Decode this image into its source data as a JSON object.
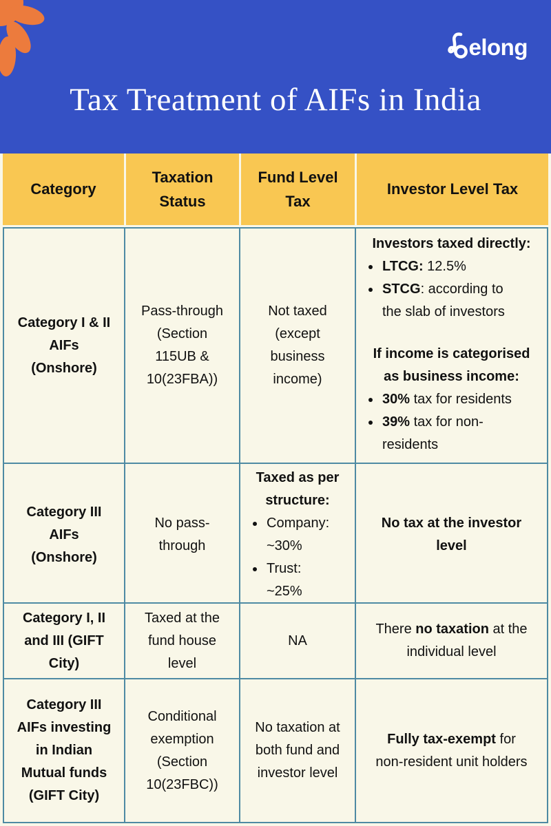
{
  "brand": {
    "name": "belong",
    "wordmark_rest": "elong"
  },
  "header": {
    "title": "Tax Treatment of AIFs in India"
  },
  "colors": {
    "hero_blue": "#3551C5",
    "accent_orange": "#EC7B3D",
    "header_yellow": "#F9C752",
    "page_cream": "#F9F7E8",
    "table_border_teal": "#4E8AA3",
    "text_dark": "#111111",
    "logo_white": "#FFFFFF"
  },
  "table": {
    "headers": [
      "Category",
      "Taxation\nStatus",
      "Fund Level\nTax",
      "Investor Level Tax"
    ],
    "rows": [
      {
        "cells": [
          {
            "blocks": [
              {
                "type": "p",
                "runs": [
                  {
                    "t": "Category I & II\nAIFs\n(Onshore)",
                    "b": true
                  }
                ]
              }
            ]
          },
          {
            "blocks": [
              {
                "type": "p",
                "runs": [
                  {
                    "t": "Pass-through\n(Section\n115UB &\n10(23FBA))"
                  }
                ]
              }
            ]
          },
          {
            "blocks": [
              {
                "type": "p",
                "runs": [
                  {
                    "t": "Not taxed\n(except\nbusiness\nincome)"
                  }
                ]
              }
            ]
          },
          {
            "align": "top",
            "blocks": [
              {
                "type": "p",
                "runs": [
                  {
                    "t": "Investors taxed directly:",
                    "b": true
                  }
                ]
              },
              {
                "type": "ul",
                "items": [
                  [
                    {
                      "t": "LTCG:",
                      "b": true
                    },
                    {
                      "t": " 12.5%"
                    }
                  ],
                  [
                    {
                      "t": "STCG",
                      "b": true
                    },
                    {
                      "t": ": according to\nthe slab of investors"
                    }
                  ]
                ]
              },
              {
                "type": "gap"
              },
              {
                "type": "p",
                "runs": [
                  {
                    "t": "If income is categorised\nas business income:",
                    "b": true
                  }
                ]
              },
              {
                "type": "ul",
                "items": [
                  [
                    {
                      "t": "30%",
                      "b": true
                    },
                    {
                      "t": " tax for residents"
                    }
                  ],
                  [
                    {
                      "t": "39%",
                      "b": true
                    },
                    {
                      "t": " tax for non-\nresidents"
                    }
                  ]
                ]
              }
            ]
          }
        ]
      },
      {
        "cells": [
          {
            "blocks": [
              {
                "type": "p",
                "runs": [
                  {
                    "t": "Category III\nAIFs\n(Onshore)",
                    "b": true
                  }
                ]
              }
            ]
          },
          {
            "blocks": [
              {
                "type": "p",
                "runs": [
                  {
                    "t": "No pass-\nthrough"
                  }
                ]
              }
            ]
          },
          {
            "blocks": [
              {
                "type": "p",
                "runs": [
                  {
                    "t": "Taxed as per\nstructure:",
                    "b": true
                  }
                ]
              },
              {
                "type": "ul",
                "items": [
                  [
                    {
                      "t": "Company:\n~30%"
                    }
                  ],
                  [
                    {
                      "t": "Trust:\n~25%"
                    }
                  ]
                ]
              }
            ]
          },
          {
            "blocks": [
              {
                "type": "p",
                "runs": [
                  {
                    "t": "No tax at the investor\nlevel",
                    "b": true
                  }
                ]
              }
            ]
          }
        ]
      },
      {
        "cells": [
          {
            "blocks": [
              {
                "type": "p",
                "runs": [
                  {
                    "t": "Category I, II\nand III (GIFT\nCity)",
                    "b": true
                  }
                ]
              }
            ]
          },
          {
            "blocks": [
              {
                "type": "p",
                "runs": [
                  {
                    "t": "Taxed at the\nfund house\nlevel"
                  }
                ]
              }
            ]
          },
          {
            "blocks": [
              {
                "type": "p",
                "runs": [
                  {
                    "t": "NA"
                  }
                ]
              }
            ]
          },
          {
            "blocks": [
              {
                "type": "p",
                "runs": [
                  {
                    "t": "There "
                  },
                  {
                    "t": "no taxation",
                    "b": true
                  },
                  {
                    "t": " at the\nindividual level"
                  }
                ]
              }
            ]
          }
        ]
      },
      {
        "cells": [
          {
            "blocks": [
              {
                "type": "p",
                "runs": [
                  {
                    "t": "Category III\nAIFs investing\nin Indian\nMutual funds\n(GIFT City)",
                    "b": true
                  }
                ]
              }
            ]
          },
          {
            "blocks": [
              {
                "type": "p",
                "runs": [
                  {
                    "t": "Conditional\nexemption\n(Section\n10(23FBC))"
                  }
                ]
              }
            ]
          },
          {
            "blocks": [
              {
                "type": "p",
                "runs": [
                  {
                    "t": "No taxation at\nboth fund and\ninvestor level"
                  }
                ]
              }
            ]
          },
          {
            "blocks": [
              {
                "type": "p",
                "runs": [
                  {
                    "t": "Fully tax-exempt",
                    "b": true
                  },
                  {
                    "t": " for\nnon-resident unit holders"
                  }
                ]
              }
            ]
          }
        ]
      }
    ]
  }
}
